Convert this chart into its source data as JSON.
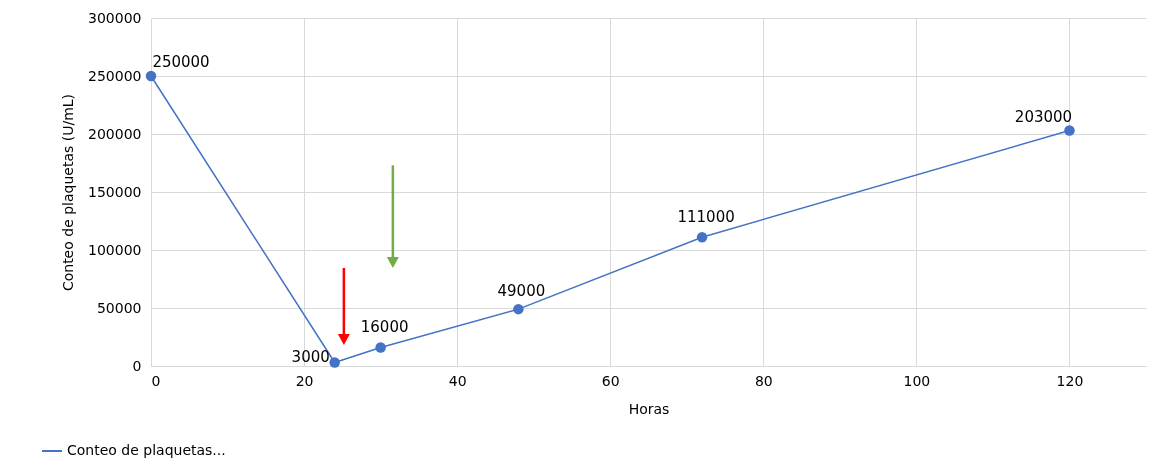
{
  "chart_data": {
    "type": "line",
    "xlabel": "Horas",
    "ylabel": "Conteo de plaquetas (U/mL)",
    "x": [
      0,
      24,
      30,
      48,
      72,
      120
    ],
    "series": [
      {
        "name": "Conteo de plaquetas...",
        "color": "#4472c4",
        "values": [
          250000,
          3000,
          16000,
          49000,
          111000,
          203000
        ]
      }
    ],
    "xlim": [
      0,
      130
    ],
    "xticks": [
      0,
      20,
      40,
      60,
      80,
      100,
      120
    ],
    "ylim": [
      0,
      300000
    ],
    "yticks": [
      0,
      50000,
      100000,
      150000,
      200000,
      250000,
      300000
    ],
    "grid": true,
    "legend": "bottom left",
    "marker": "circle",
    "data_labels": true
  }
}
